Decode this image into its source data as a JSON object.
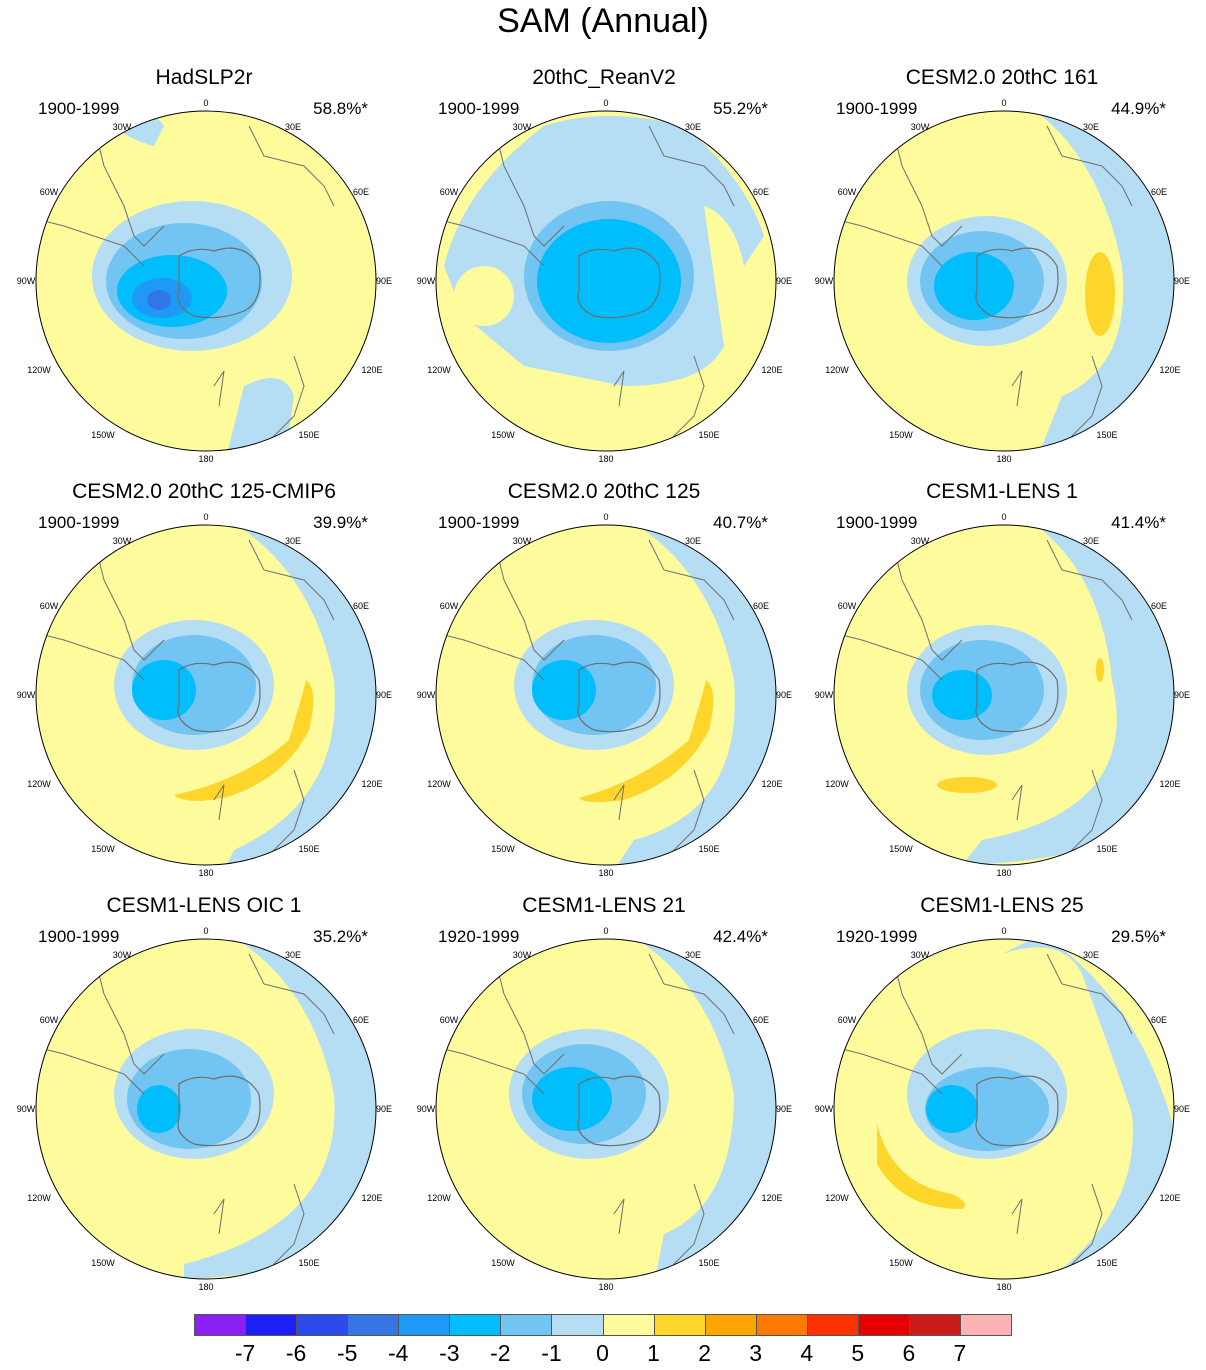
{
  "title": "SAM (Annual)",
  "colors": {
    "land": "#6e6e6e",
    "border": "#000000",
    "zero_pos": "#fefb9c",
    "neg1": "#b5ddf3",
    "neg2": "#72c4f2",
    "neg3": "#00befb",
    "neg4": "#1e99f8",
    "neg5": "#3276e6",
    "pos1": "#fed62b"
  },
  "axis_labels": {
    "lon_0": "0",
    "lon_30w": "30W",
    "lon_30e": "30E",
    "lon_60w": "60W",
    "lon_60e": "60E",
    "lon_90w": "90W",
    "lon_90e": "90E",
    "lon_120w": "120W",
    "lon_120e": "120E",
    "lon_150w": "150W",
    "lon_150e": "150E",
    "lon_180": "180"
  },
  "panels": [
    {
      "name": "HadSLP2r",
      "period": "1900-1999",
      "pct": "58.8%*"
    },
    {
      "name": "20thC_ReanV2",
      "period": "1900-1999",
      "pct": "55.2%*"
    },
    {
      "name": "CESM2.0 20thC 161",
      "period": "1900-1999",
      "pct": "44.9%*"
    },
    {
      "name": "CESM2.0 20thC 125-CMIP6",
      "period": "1900-1999",
      "pct": "39.9%*"
    },
    {
      "name": "CESM2.0 20thC 125",
      "period": "1900-1999",
      "pct": "40.7%*"
    },
    {
      "name": "CESM1-LENS 1",
      "period": "1900-1999",
      "pct": "41.4%*"
    },
    {
      "name": "CESM1-LENS OIC 1",
      "period": "1900-1999",
      "pct": "35.2%*"
    },
    {
      "name": "CESM1-LENS 21",
      "period": "1920-1999",
      "pct": "42.4%*"
    },
    {
      "name": "CESM1-LENS 25",
      "period": "1920-1999",
      "pct": "29.5%*"
    }
  ],
  "colorbar": {
    "labels": [
      "-7",
      "-6",
      "-5",
      "-4",
      "-3",
      "-2",
      "-1",
      "0",
      "1",
      "2",
      "3",
      "4",
      "5",
      "6",
      "7"
    ],
    "colors": [
      "#8b1ff5",
      "#1c20f5",
      "#2b4bea",
      "#3576e3",
      "#1e99f8",
      "#00befb",
      "#72c4f2",
      "#b5ddf3",
      "#fefb9c",
      "#fed62b",
      "#fda600",
      "#fd7a00",
      "#fd3200",
      "#e60002",
      "#cc1b1b",
      "#fdb3b3"
    ]
  }
}
